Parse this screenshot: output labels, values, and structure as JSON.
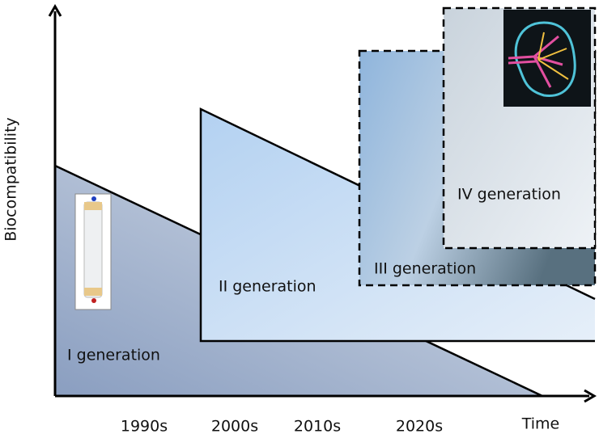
{
  "axes": {
    "y_label": "Biocompatibility",
    "x_label": "Time"
  },
  "decades": [
    "1990s",
    "2000s",
    "2010s",
    "2020s"
  ],
  "generations": [
    {
      "label": "I generation"
    },
    {
      "label": "II generation"
    },
    {
      "label": "III generation"
    },
    {
      "label": "IV generation"
    }
  ]
}
